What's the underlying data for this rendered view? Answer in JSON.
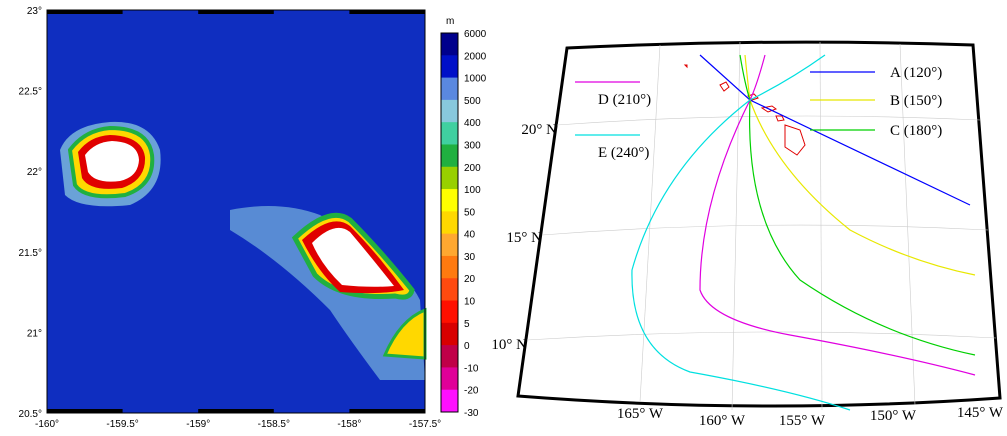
{
  "left_map": {
    "x_labels": [
      "-160°",
      "-159.5°",
      "-159°",
      "-158.5°",
      "-158°",
      "-157.5°"
    ],
    "y_labels": [
      "23°",
      "22.5°",
      "22°",
      "21.5°",
      "21°",
      "20.5°"
    ],
    "colorbar": {
      "unit": "m",
      "labels": [
        "6000",
        "2000",
        "1000",
        "500",
        "400",
        "300",
        "200",
        "100",
        "50",
        "40",
        "30",
        "20",
        "10",
        "5",
        "0",
        "-10",
        "-20",
        "-30"
      ],
      "colors": [
        "#00008c",
        "#0010c8",
        "#5a88e0",
        "#88c8dc",
        "#40d0a0",
        "#20b040",
        "#98d000",
        "#ffff00",
        "#ffd800",
        "#ffa830",
        "#ff7a10",
        "#ff4a10",
        "#ff1000",
        "#d80000",
        "#c00048",
        "#e00098",
        "#ff10ff"
      ]
    }
  },
  "right_map": {
    "legend": [
      {
        "label": "A (120°)",
        "color": "#0000ff"
      },
      {
        "label": "B (150°)",
        "color": "#e8e800"
      },
      {
        "label": "C (180°)",
        "color": "#00d000"
      },
      {
        "label": "D (210°)",
        "color": "#e000e0"
      },
      {
        "label": "E (240°)",
        "color": "#00e0e0"
      }
    ],
    "lat_labels": [
      "20° N",
      "15° N",
      "10° N"
    ],
    "lon_labels": [
      "165° W",
      "160° W",
      "155° W",
      "150° W",
      "145° W"
    ]
  }
}
